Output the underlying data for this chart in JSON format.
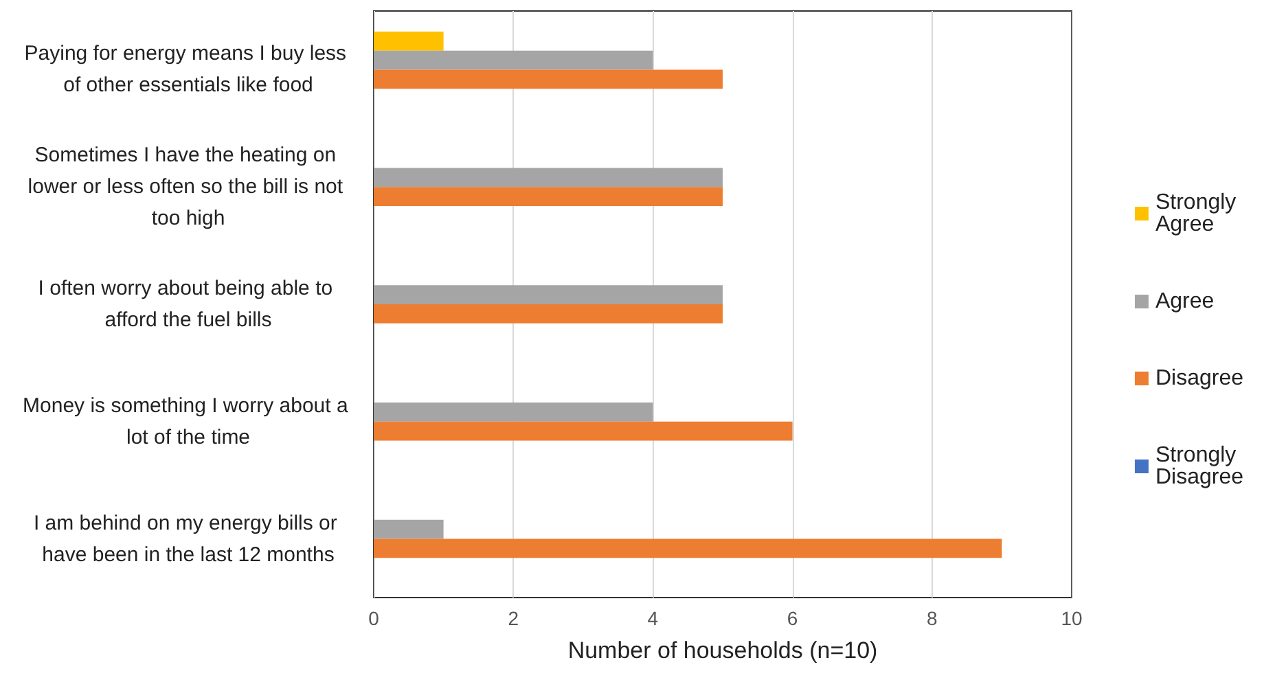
{
  "chart_data": {
    "type": "bar",
    "orientation": "horizontal",
    "xlabel": "Number of households (n=10)",
    "categories": [
      "Paying for energy means I buy less of other essentials like food",
      "Sometimes I have the heating on lower or less often so the bill is not too high",
      "I often worry about being able to afford the fuel bills",
      "Money is something I worry about a lot of the time",
      "I am behind on my energy bills or have been in the last 12 months"
    ],
    "series": [
      {
        "name": "Strongly Agree",
        "color": "#ffc000",
        "values": [
          1,
          0,
          0,
          0,
          0
        ]
      },
      {
        "name": "Agree",
        "color": "#a5a5a5",
        "values": [
          4,
          5,
          5,
          4,
          1
        ]
      },
      {
        "name": "Disagree",
        "color": "#ed7d31",
        "values": [
          5,
          5,
          5,
          6,
          9
        ]
      },
      {
        "name": "Strongly Disagree",
        "color": "#4472c4",
        "values": [
          0,
          0,
          0,
          0,
          0
        ]
      }
    ],
    "xlim": [
      0,
      10
    ],
    "xticks": [
      0,
      2,
      4,
      6,
      8,
      10
    ],
    "grid": "x",
    "legend": "right"
  }
}
